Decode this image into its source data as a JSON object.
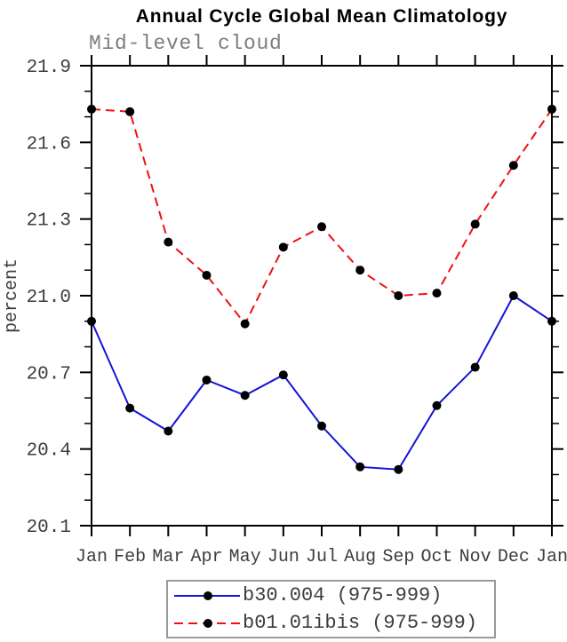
{
  "title": "Annual Cycle Global Mean Climatology",
  "subtitle": "Mid-level cloud",
  "chart_data": {
    "type": "line",
    "title": "Annual Cycle Global Mean Climatology",
    "subtitle": "Mid-level cloud",
    "xlabel": "",
    "ylabel": "percent",
    "categories": [
      "Jan",
      "Feb",
      "Mar",
      "Apr",
      "May",
      "Jun",
      "Jul",
      "Aug",
      "Sep",
      "Oct",
      "Nov",
      "Dec",
      "Jan"
    ],
    "ylim": [
      20.1,
      21.9
    ],
    "y_major_ticks": [
      20.1,
      20.4,
      20.7,
      21.0,
      21.3,
      21.6,
      21.9
    ],
    "y_tick_labels": [
      "20.1",
      "20.4",
      "20.7",
      "21.0",
      "21.3",
      "21.6",
      "21.9"
    ],
    "y_minor_step": 0.1,
    "grid": false,
    "legend_position": "bottom",
    "series": [
      {
        "name": "b30.004 (975-999)",
        "color": "#1414d6",
        "line_style": "solid",
        "marker": "circle",
        "marker_color": "#000000",
        "values": [
          20.9,
          20.56,
          20.47,
          20.67,
          20.61,
          20.69,
          20.49,
          20.33,
          20.32,
          20.57,
          20.72,
          21.0,
          20.9
        ]
      },
      {
        "name": "b01.01ibis (975-999)",
        "color": "#ee1111",
        "line_style": "dashed",
        "marker": "circle",
        "marker_color": "#000000",
        "values": [
          21.73,
          21.72,
          21.21,
          21.08,
          20.89,
          21.19,
          21.27,
          21.1,
          21.0,
          21.01,
          21.28,
          21.51,
          21.73
        ]
      }
    ]
  },
  "colors": {
    "axis": "#000000",
    "tick_label": "#3d3d3d",
    "subtitle": "#7e7e7e",
    "legend_border": "#9a9a9a",
    "background": "#ffffff"
  }
}
